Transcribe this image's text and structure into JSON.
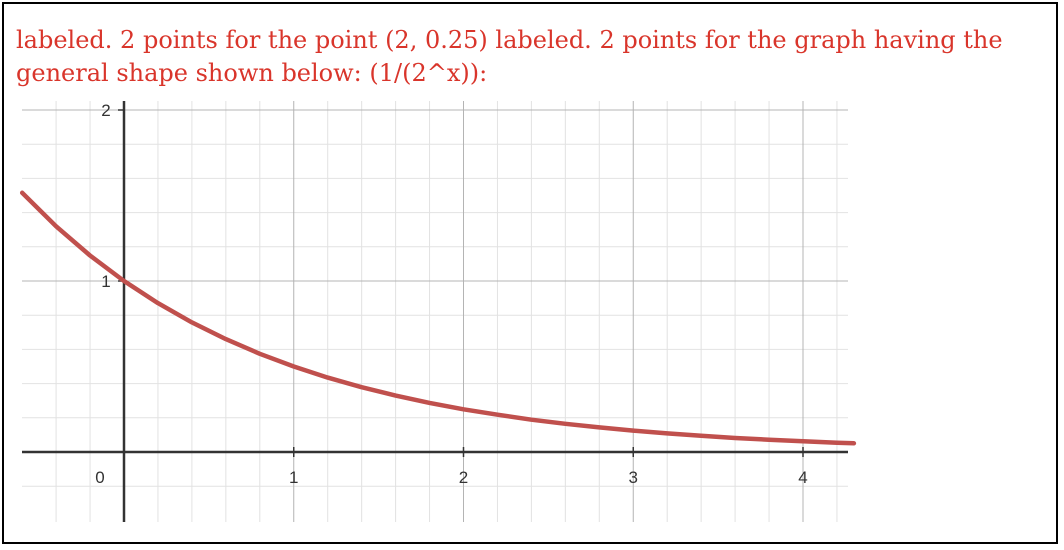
{
  "caption": {
    "line1": "labeled. 2 points for the point (2, 0.25) labeled. 2 points for the graph having the",
    "line2": "general shape shown below: (1/(2^x)):",
    "color": "#d9352b"
  },
  "chart_data": {
    "type": "line",
    "title": "",
    "xlabel": "",
    "ylabel": "",
    "function": "1/(2^x)",
    "xlim": [
      -0.6,
      4.3
    ],
    "ylim": [
      -0.35,
      2.05
    ],
    "x_ticks": [
      0,
      1,
      2,
      3,
      4
    ],
    "x_tick_labels": [
      "0",
      "1",
      "2",
      "3",
      "4"
    ],
    "y_ticks": [
      1,
      2
    ],
    "y_tick_labels": [
      "1",
      "2"
    ],
    "grid": true,
    "minor_grid_step": 0.2,
    "series": [
      {
        "color": "#c0504d",
        "x": [
          -0.6,
          -0.4,
          -0.2,
          0,
          0.2,
          0.4,
          0.6,
          0.8,
          1,
          1.2,
          1.4,
          1.6,
          1.8,
          2,
          2.2,
          2.4,
          2.6,
          2.8,
          3,
          3.2,
          3.4,
          3.6,
          3.8,
          4,
          4.2,
          4.3
        ],
        "y": [
          1.516,
          1.32,
          1.149,
          1,
          0.871,
          0.758,
          0.66,
          0.574,
          0.5,
          0.435,
          0.379,
          0.33,
          0.287,
          0.25,
          0.218,
          0.189,
          0.165,
          0.144,
          0.125,
          0.109,
          0.095,
          0.082,
          0.072,
          0.0625,
          0.054,
          0.051
        ]
      }
    ]
  }
}
